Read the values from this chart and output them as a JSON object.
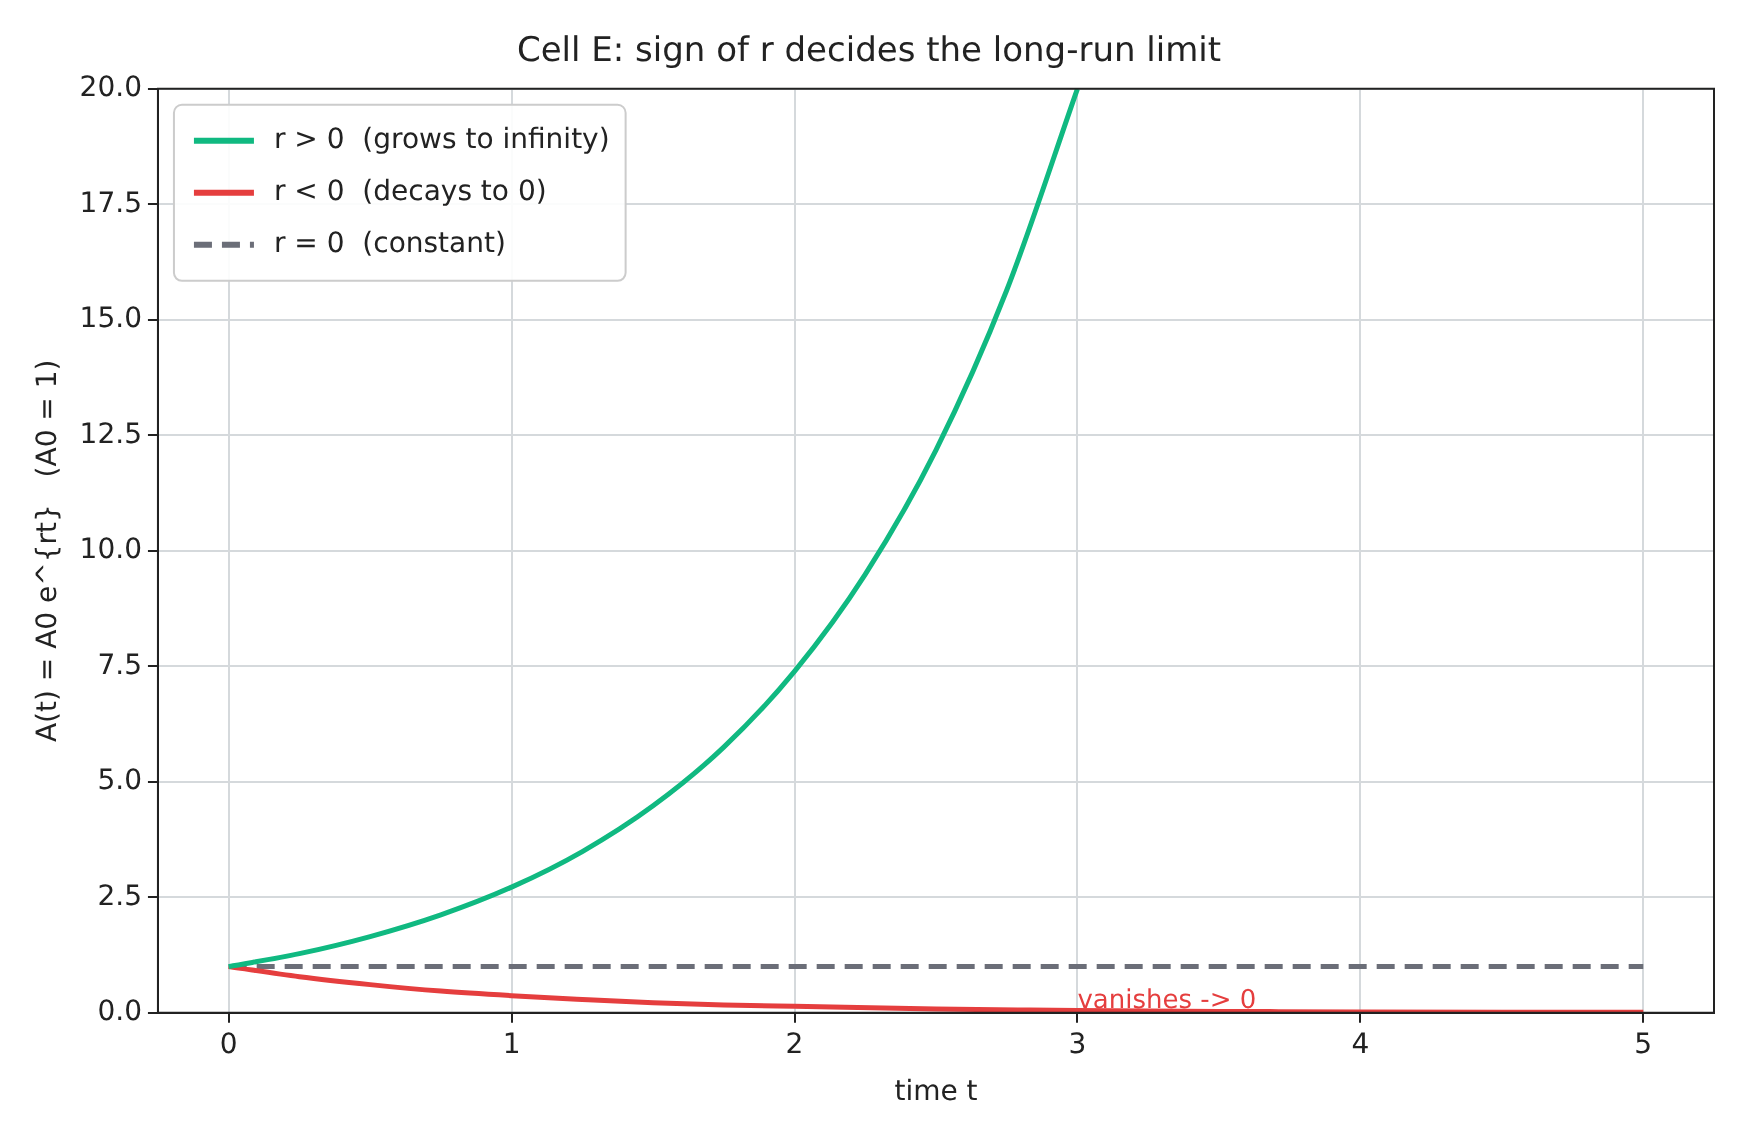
{
  "chart_data": {
    "type": "line",
    "title": "Cell E: sign of r decides the long-run limit",
    "xlabel": "time t",
    "ylabel": "A(t) = A0 e^{rt}   (A0 = 1)",
    "series": [
      {
        "name": "r > 0  (grows to infinity)",
        "color": "#10b981",
        "x": [
          0,
          0.25,
          0.5,
          0.75,
          1,
          1.25,
          1.5,
          1.75,
          2,
          2.25,
          2.5,
          2.75,
          3
        ],
        "values": [
          1,
          1.28,
          1.65,
          2.12,
          2.72,
          3.49,
          4.48,
          5.75,
          7.39,
          9.49,
          12.18,
          15.64,
          20
        ]
      },
      {
        "name": "r < 0  (decays to 0)",
        "color": "#e53e3e",
        "x": [
          0,
          0.25,
          0.5,
          0.75,
          1,
          1.25,
          1.5,
          1.75,
          2,
          2.5,
          3,
          3.5,
          4,
          4.5,
          5
        ],
        "values": [
          1,
          0.78,
          0.61,
          0.47,
          0.37,
          0.29,
          0.22,
          0.17,
          0.14,
          0.08,
          0.05,
          0.03,
          0.02,
          0.01,
          0.01
        ]
      },
      {
        "name": "r = 0  (constant)",
        "color": "#6b6e78",
        "line_style": "dashed",
        "x": [
          0,
          5
        ],
        "values": [
          1,
          1
        ]
      }
    ],
    "xlim": [
      -0.25,
      5.25
    ],
    "xticks": [
      0,
      1,
      2,
      3,
      4,
      5
    ],
    "ylim": [
      0,
      20
    ],
    "yticks": [
      {
        "value": 0,
        "label": "0.0"
      },
      {
        "value": 2.5,
        "label": "2.5"
      },
      {
        "value": 5,
        "label": "5.0"
      },
      {
        "value": 7.5,
        "label": "7.5"
      },
      {
        "value": 10,
        "label": "10.0"
      },
      {
        "value": 12.5,
        "label": "12.5"
      },
      {
        "value": 15,
        "label": "15.0"
      },
      {
        "value": 17.5,
        "label": "17.5"
      },
      {
        "value": 20,
        "label": "20.0"
      }
    ],
    "grid": true,
    "legend": "top left",
    "marker": "none",
    "annotations": [
      {
        "text": "vanishes -> 0",
        "x": 3,
        "y": 0.05
      }
    ]
  }
}
